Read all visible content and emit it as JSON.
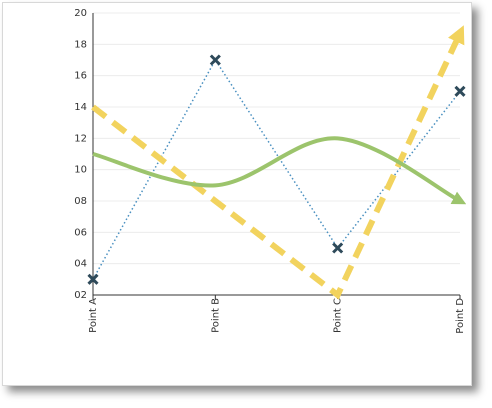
{
  "chart_data": {
    "type": "line",
    "categories": [
      "Point A",
      "Point B",
      "Point C",
      "Point D"
    ],
    "series": [
      {
        "color": "#4a90c0",
        "style": "dotted",
        "marker": "x",
        "values": [
          3,
          17,
          5,
          15
        ]
      },
      {
        "color": "#f2d35e",
        "style": "dashed",
        "arrow": true,
        "values": [
          14,
          8,
          2,
          18.7
        ]
      },
      {
        "color": "#9cc46c",
        "style": "spline",
        "arrow": true,
        "values": [
          11,
          9,
          12,
          8
        ]
      }
    ],
    "ylim": [
      2,
      20
    ],
    "yticks": [
      {
        "value": 2,
        "label": "02"
      },
      {
        "value": 4,
        "label": "04"
      },
      {
        "value": 6,
        "label": "06"
      },
      {
        "value": 8,
        "label": "08"
      },
      10,
      12,
      14,
      16,
      18,
      20
    ],
    "grid": true
  }
}
